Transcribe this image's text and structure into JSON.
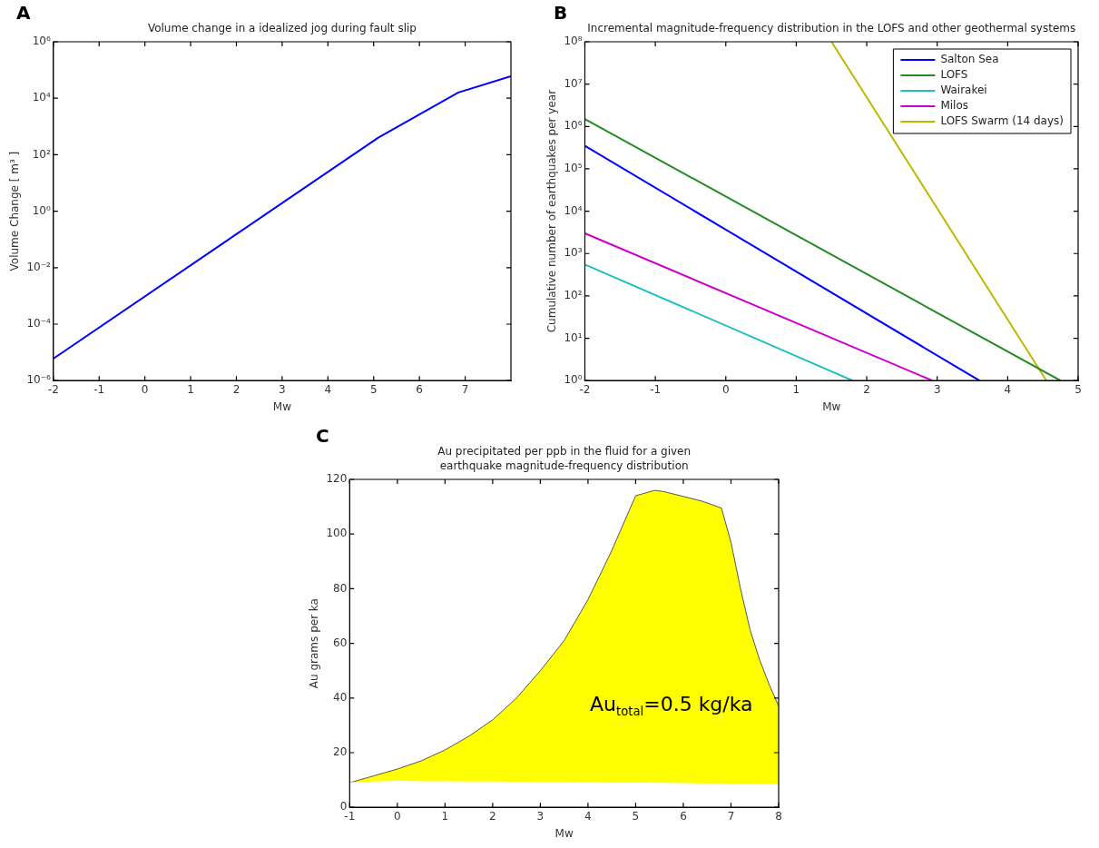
{
  "chart_data": [
    {
      "type": "line",
      "title": "Volume change in a idealized jog during fault slip",
      "xlabel": "Mw",
      "ylabel": "Volume Change [ m³ ]",
      "annotations": [
        "A"
      ],
      "log": "y",
      "grid": false,
      "legend": false,
      "xlim": [
        -2,
        8
      ],
      "xticks": [
        -2,
        -1,
        0,
        1,
        2,
        3,
        4,
        5,
        6,
        7
      ],
      "ylim": [
        1e-06,
        1000000.0
      ],
      "yticks": [
        {
          "value": 1e-06,
          "label": "10⁻⁶"
        },
        {
          "value": 0.0001,
          "label": "10⁻⁴"
        },
        {
          "value": 0.01,
          "label": "10⁻²"
        },
        {
          "value": 1,
          "label": "10⁰"
        },
        {
          "value": 100,
          "label": "10²"
        },
        {
          "value": 10000,
          "label": "10⁴"
        },
        {
          "value": 1000000,
          "label": "10⁶"
        }
      ],
      "series": [
        {
          "color": "#0000ff",
          "x": [
            -2,
            5.1,
            6.85,
            8
          ],
          "values": [
            6e-06,
            400,
            16000,
            60000
          ]
        }
      ]
    },
    {
      "type": "line",
      "title": "Incremental magnitude-frequency distribution in the LOFS and other geothermal systems",
      "xlabel": "Mw",
      "ylabel": "Cumulative number of earthquakes per year",
      "annotations": [
        "B"
      ],
      "log": "y",
      "grid": false,
      "legend": "top right",
      "xlim": [
        -2,
        5
      ],
      "xticks": [
        -2,
        -1,
        0,
        1,
        2,
        3,
        4,
        5
      ],
      "ylim": [
        1,
        100000000.0
      ],
      "yticks": [
        {
          "value": 1,
          "label": "10⁰"
        },
        {
          "value": 10,
          "label": "10¹"
        },
        {
          "value": 100,
          "label": "10²"
        },
        {
          "value": 1000,
          "label": "10³"
        },
        {
          "value": 10000,
          "label": "10⁴"
        },
        {
          "value": 100000,
          "label": "10⁵"
        },
        {
          "value": 1000000,
          "label": "10⁶"
        },
        {
          "value": 10000000,
          "label": "10⁷"
        },
        {
          "value": 100000000,
          "label": "10⁸"
        }
      ],
      "series": [
        {
          "name": "Salton Sea",
          "color": "#0000ff",
          "x": [
            -2,
            3.6
          ],
          "values": [
            350000,
            1
          ]
        },
        {
          "name": "LOFS",
          "color": "#228b22",
          "x": [
            -2,
            4.75
          ],
          "values": [
            1500000,
            1
          ]
        },
        {
          "name": "Wairakei",
          "color": "#20c0c0",
          "x": [
            -2,
            1.8
          ],
          "values": [
            550,
            1
          ]
        },
        {
          "name": "Milos",
          "color": "#cc00cc",
          "x": [
            -2,
            2.93
          ],
          "values": [
            3000,
            1
          ]
        },
        {
          "name": "LOFS Swarm (14 days)",
          "color": "#bdb800",
          "x": [
            1.5,
            4.55
          ],
          "values": [
            100000000,
            1
          ]
        }
      ]
    },
    {
      "type": "area",
      "title": "Au precipitated per ppb in the fluid for a given\nearthquake magnitude-frequency distribution",
      "xlabel": "Mw",
      "ylabel": "Au grams per ka",
      "annotations": [
        "C",
        "Au$_{total}$=0.5 kg/ka"
      ],
      "grid": false,
      "legend": false,
      "xlim": [
        -1,
        8
      ],
      "xticks": [
        -1,
        0,
        1,
        2,
        3,
        4,
        5,
        6,
        7,
        8
      ],
      "ylim": [
        0,
        120
      ],
      "yticks": [
        0,
        20,
        40,
        60,
        80,
        100,
        120
      ],
      "series": [
        {
          "color": "#ffff00",
          "x": [
            -1,
            -0.5,
            0,
            0.5,
            1,
            1.5,
            2,
            2.5,
            3,
            3.5,
            4,
            4.5,
            5,
            5.4,
            5.6,
            6.4,
            6.8,
            7,
            7.2,
            7.4,
            7.6,
            7.8,
            8
          ],
          "values": [
            9,
            11.5,
            14,
            17,
            21,
            26,
            32,
            40,
            50,
            61,
            76,
            94,
            114,
            116,
            115.5,
            112,
            109.5,
            97,
            80,
            65,
            54,
            45,
            37
          ]
        },
        {
          "color": "#ffffff",
          "x": [
            -1,
            -0.5,
            0,
            0.5,
            1,
            1.5,
            2,
            2.5,
            3,
            3.5,
            4,
            4.5,
            5,
            5.4,
            5.6,
            6.4,
            6.8,
            7,
            7.2,
            7.4,
            7.6,
            7.8,
            8
          ],
          "values": [
            9,
            9.3,
            9.5,
            9.4,
            9.4,
            9.3,
            9.3,
            9.2,
            9.1,
            9.1,
            9,
            8.9,
            8.9,
            8.8,
            8.8,
            8.6,
            8.6,
            8.5,
            8.5,
            8.5,
            8.4,
            8.4,
            8.4
          ]
        }
      ]
    }
  ]
}
